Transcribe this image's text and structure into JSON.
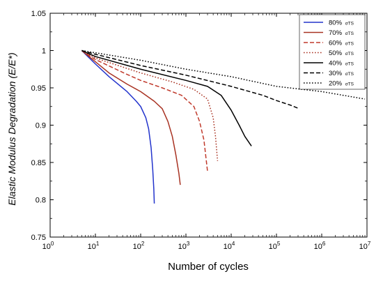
{
  "chart_data": {
    "type": "line",
    "xlabel": "Number of cycles",
    "ylabel": "Elastic Modulus Degradation (E/E*)",
    "xscale": "log",
    "xlim": [
      1,
      10000000
    ],
    "ylim": [
      0.75,
      1.05
    ],
    "xticks": [
      {
        "value": 1,
        "base": "10",
        "exp": "0"
      },
      {
        "value": 10,
        "base": "10",
        "exp": "1"
      },
      {
        "value": 100,
        "base": "10",
        "exp": "2"
      },
      {
        "value": 1000,
        "base": "10",
        "exp": "3"
      },
      {
        "value": 10000,
        "base": "10",
        "exp": "4"
      },
      {
        "value": 100000,
        "base": "10",
        "exp": "5"
      },
      {
        "value": 1000000,
        "base": "10",
        "exp": "6"
      },
      {
        "value": 10000000,
        "base": "10",
        "exp": "7"
      }
    ],
    "yticks": [
      {
        "value": 0.75,
        "label": "0.75"
      },
      {
        "value": 0.8,
        "label": "0.8"
      },
      {
        "value": 0.85,
        "label": "0.85"
      },
      {
        "value": 0.9,
        "label": "0.9"
      },
      {
        "value": 0.95,
        "label": "0.95"
      },
      {
        "value": 1,
        "label": "1"
      },
      {
        "value": 1.05,
        "label": "1.05"
      }
    ],
    "grid": false,
    "legend_position": "top-right",
    "series": [
      {
        "name": "80%",
        "sub": "σTS",
        "color": "#2233cc",
        "dash": "solid",
        "points": [
          [
            5,
            1.0
          ],
          [
            10,
            0.982
          ],
          [
            20,
            0.965
          ],
          [
            50,
            0.945
          ],
          [
            80,
            0.932
          ],
          [
            100,
            0.925
          ],
          [
            130,
            0.91
          ],
          [
            150,
            0.895
          ],
          [
            170,
            0.87
          ],
          [
            185,
            0.84
          ],
          [
            195,
            0.815
          ],
          [
            200,
            0.795
          ]
        ]
      },
      {
        "name": "70%",
        "sub": "σTS",
        "color": "#a83222",
        "dash": "solid",
        "points": [
          [
            5,
            1.0
          ],
          [
            10,
            0.985
          ],
          [
            20,
            0.97
          ],
          [
            50,
            0.955
          ],
          [
            100,
            0.945
          ],
          [
            200,
            0.932
          ],
          [
            300,
            0.922
          ],
          [
            400,
            0.905
          ],
          [
            500,
            0.885
          ],
          [
            600,
            0.86
          ],
          [
            700,
            0.835
          ],
          [
            750,
            0.82
          ]
        ]
      },
      {
        "name": "60%",
        "sub": "σTS",
        "color": "#c0392b",
        "dash": "dashed",
        "points": [
          [
            5,
            1.0
          ],
          [
            10,
            0.988
          ],
          [
            50,
            0.968
          ],
          [
            100,
            0.96
          ],
          [
            300,
            0.95
          ],
          [
            800,
            0.94
          ],
          [
            1500,
            0.925
          ],
          [
            2000,
            0.905
          ],
          [
            2500,
            0.88
          ],
          [
            3000,
            0.838
          ]
        ]
      },
      {
        "name": "50%",
        "sub": "σTS",
        "color": "#a83222",
        "dash": "dotted",
        "points": [
          [
            5,
            1.0
          ],
          [
            10,
            0.99
          ],
          [
            100,
            0.97
          ],
          [
            500,
            0.958
          ],
          [
            1500,
            0.948
          ],
          [
            3000,
            0.935
          ],
          [
            4000,
            0.91
          ],
          [
            4500,
            0.885
          ],
          [
            5000,
            0.852
          ]
        ]
      },
      {
        "name": "40%",
        "sub": "σTS",
        "color": "#000000",
        "dash": "solid",
        "points": [
          [
            5,
            1.0
          ],
          [
            10,
            0.992
          ],
          [
            100,
            0.975
          ],
          [
            1000,
            0.96
          ],
          [
            3000,
            0.952
          ],
          [
            6000,
            0.94
          ],
          [
            10000,
            0.92
          ],
          [
            15000,
            0.9
          ],
          [
            20000,
            0.885
          ],
          [
            28000,
            0.872
          ]
        ]
      },
      {
        "name": "30%",
        "sub": "σTS",
        "color": "#000000",
        "dash": "dashed",
        "points": [
          [
            5,
            1.0
          ],
          [
            10,
            0.995
          ],
          [
            100,
            0.98
          ],
          [
            1000,
            0.967
          ],
          [
            10000,
            0.952
          ],
          [
            50000,
            0.94
          ],
          [
            100000,
            0.933
          ],
          [
            200000,
            0.927
          ],
          [
            320000,
            0.922
          ]
        ]
      },
      {
        "name": "20%",
        "sub": "σTS",
        "color": "#000000",
        "dash": "dotted",
        "points": [
          [
            5,
            1.0
          ],
          [
            10,
            0.997
          ],
          [
            100,
            0.987
          ],
          [
            1000,
            0.975
          ],
          [
            10000,
            0.965
          ],
          [
            100000,
            0.952
          ],
          [
            1000000,
            0.945
          ],
          [
            3000000,
            0.94
          ],
          [
            9000000,
            0.935
          ]
        ]
      }
    ]
  }
}
